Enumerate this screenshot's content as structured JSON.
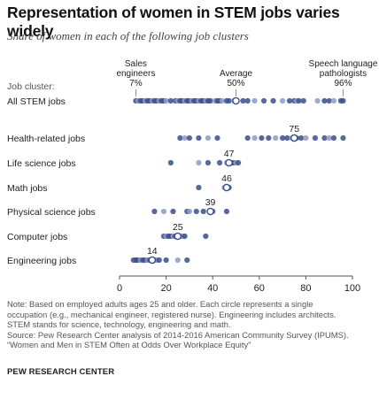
{
  "title": "Representation  of women in STEM jobs varies widely",
  "subtitle": "Share of women in each of the following job clusters",
  "source_org": "PEW RESEARCH CENTER",
  "notes": [
    "Note: Based on employed adults ages 25 and older. Each circle represents a single",
    "occupation (e.g., mechanical engineer, registered nurse).  Engineering includes architects.",
    "STEM stands for science, technology, engineering and math.",
    "Source: Pew Research Center analysis of 2014-2016 American Community Survey (IPUMS).",
    "“Women and Men in STEM Often at Odds Over Workplace Equity”"
  ],
  "colors": {
    "dot": "#3a4e8c",
    "dot_light": "#8d9bc4",
    "highlight_fill": "#ffffff",
    "axis": "#555555",
    "text": "#222222"
  },
  "chart_data": {
    "type": "scatter",
    "xlabel": "",
    "ylabel": "Job cluster:",
    "xlim": [
      0,
      100
    ],
    "xticks": [
      0,
      20,
      40,
      60,
      80,
      100
    ],
    "xtick_labels": [
      "0",
      "20",
      "40",
      "60",
      "80",
      "100"
    ],
    "grid": false,
    "annotations": [
      {
        "lines": [
          "Sales",
          "engineers",
          "7%"
        ],
        "x": 7
      },
      {
        "lines": [
          "Average",
          "50%"
        ],
        "x": 50
      },
      {
        "lines": [
          "Speech language",
          "pathologists",
          "96%"
        ],
        "x": 96
      }
    ],
    "series": [
      {
        "name": "All STEM jobs",
        "average": 50,
        "show_label": false,
        "values": [
          7,
          8,
          9,
          10,
          11,
          12,
          13,
          14,
          15,
          16,
          17,
          18,
          19,
          20,
          22,
          24,
          25,
          26,
          27,
          28,
          29,
          30,
          31,
          32,
          33,
          34,
          35,
          36,
          37,
          38,
          39,
          41,
          42,
          43,
          44,
          46,
          47,
          49,
          53,
          55,
          58,
          62,
          66,
          70,
          73,
          75,
          76,
          77,
          79,
          85,
          88,
          90,
          92,
          95,
          96
        ]
      },
      {
        "name": "Health-related jobs",
        "average": 75,
        "show_label": true,
        "values": [
          26,
          28,
          30,
          34,
          38,
          42,
          55,
          58,
          61,
          64,
          67,
          70,
          72,
          74,
          76,
          78,
          80,
          84,
          88,
          90,
          92,
          96
        ]
      },
      {
        "name": "Life science jobs",
        "average": 47,
        "show_label": true,
        "values": [
          22,
          34,
          38,
          43,
          46,
          48,
          49,
          50,
          51
        ]
      },
      {
        "name": "Math jobs",
        "average": 46,
        "show_label": true,
        "values": [
          34,
          45,
          46,
          47
        ]
      },
      {
        "name": "Physical science jobs",
        "average": 39,
        "show_label": true,
        "values": [
          15,
          19,
          23,
          29,
          30,
          33,
          36,
          39,
          40,
          46
        ]
      },
      {
        "name": "Computer jobs",
        "average": 25,
        "show_label": true,
        "values": [
          19,
          20,
          21,
          22,
          23,
          24,
          26,
          27,
          28,
          37
        ]
      },
      {
        "name": "Engineering jobs",
        "average": 14,
        "show_label": true,
        "values": [
          6,
          7,
          7,
          8,
          9,
          10,
          11,
          12,
          13,
          15,
          16,
          17,
          20,
          25,
          29
        ]
      }
    ]
  }
}
